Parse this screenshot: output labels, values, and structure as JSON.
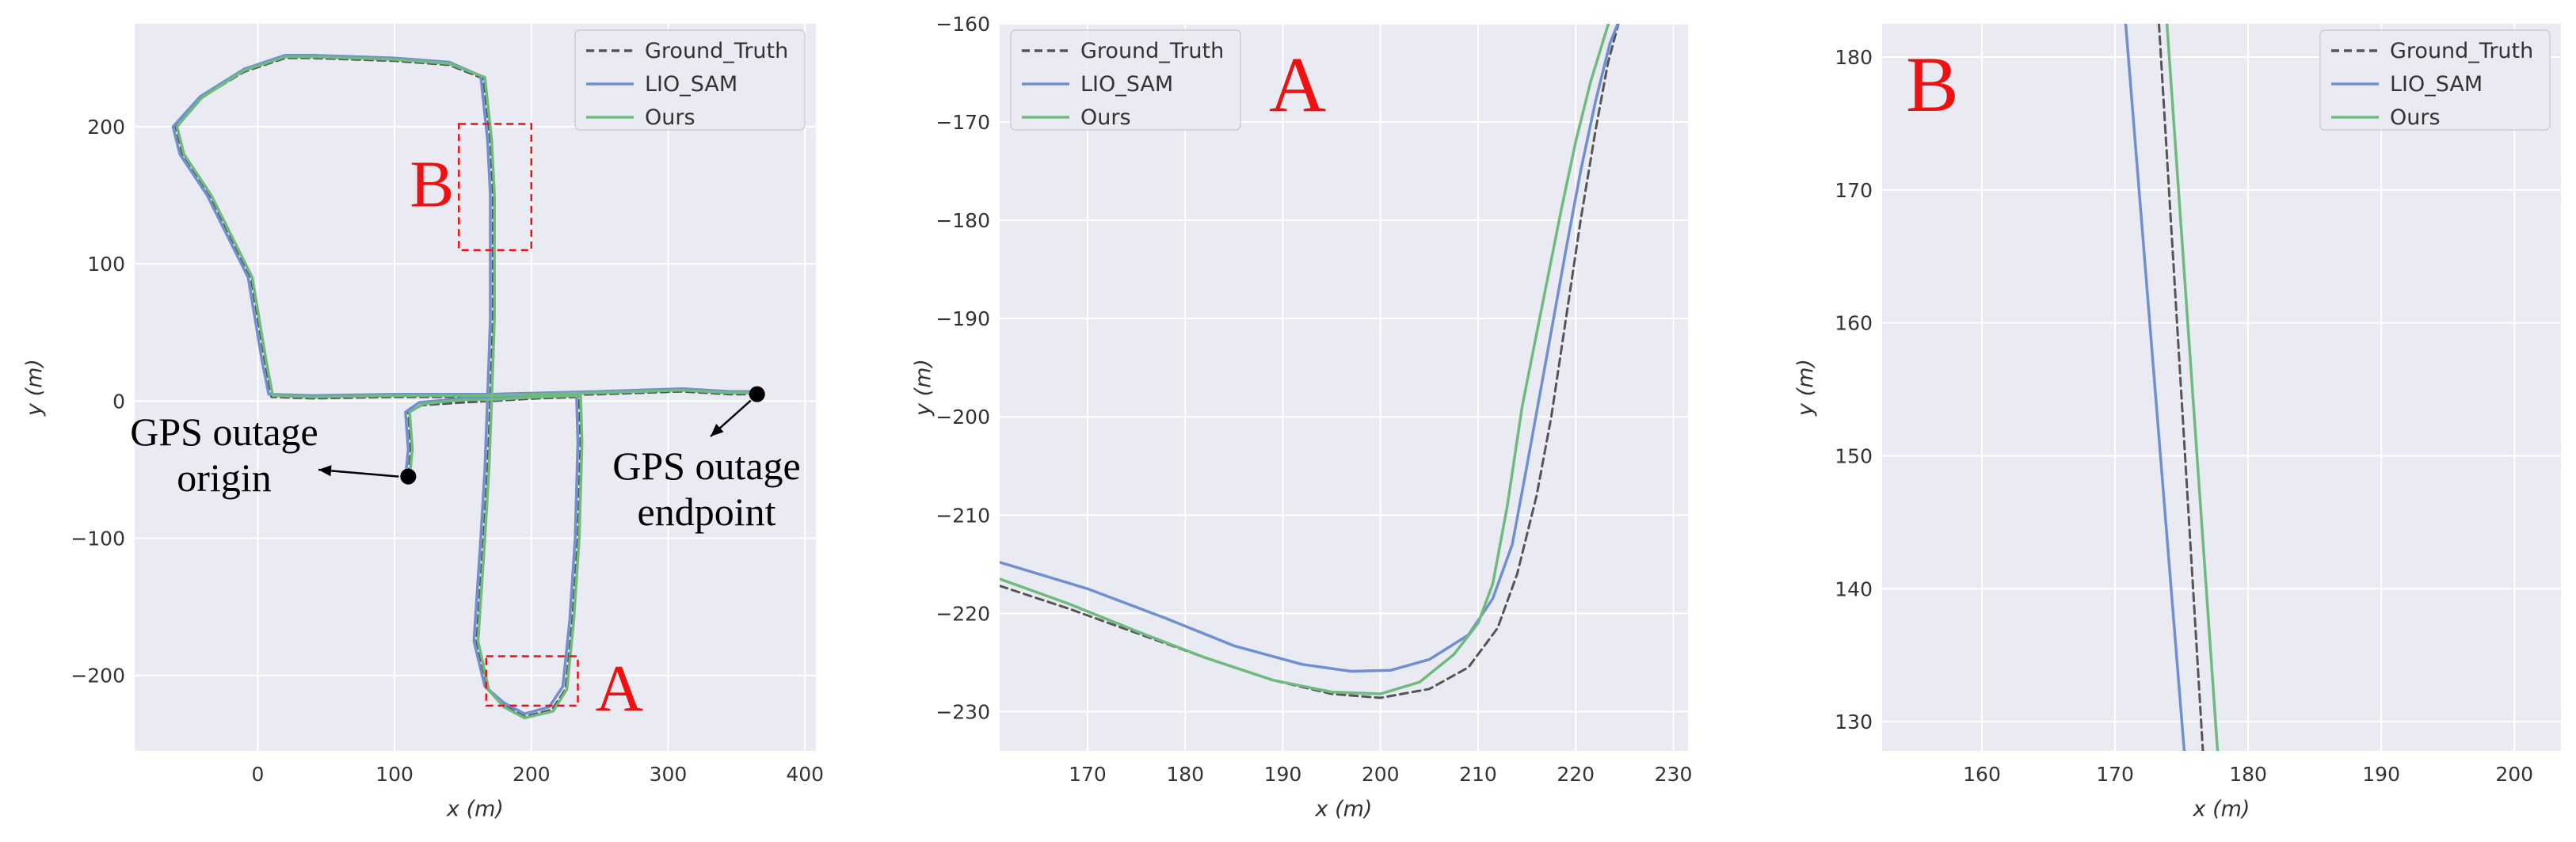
{
  "colors": {
    "background": "#eaeaf2",
    "grid": "#ffffff",
    "ground_truth": "#555555",
    "lio_sam": "#6f8fd0",
    "ours": "#6fba7f",
    "marker_box": "#ee1111",
    "annotation": "#000000"
  },
  "chart_data": [
    {
      "type": "line",
      "xlabel": "x (m)",
      "ylabel": "y (m)",
      "xlim": [
        -90,
        408
      ],
      "ylim": [
        -255,
        275
      ],
      "xticks": [
        0,
        100,
        200,
        300,
        400
      ],
      "yticks": [
        -200,
        -100,
        0,
        100,
        200
      ],
      "grid": true,
      "legend_position": "top-right",
      "series": [
        {
          "name": "Ground_Truth",
          "style": "dashed",
          "color": "#555555",
          "points": [
            [
              110,
              -55
            ],
            [
              112,
              -35
            ],
            [
              110,
              -8
            ],
            [
              120,
              -3
            ],
            [
              150,
              -1
            ],
            [
              170,
              0
            ],
            [
              205,
              2
            ],
            [
              235,
              3
            ],
            [
              236,
              -30
            ],
            [
              234,
              -100
            ],
            [
              230,
              -160
            ],
            [
              225,
              -210
            ],
            [
              215,
              -225
            ],
            [
              195,
              -230
            ],
            [
              180,
              -222
            ],
            [
              168,
              -210
            ],
            [
              160,
              -175
            ],
            [
              165,
              -100
            ],
            [
              168,
              -50
            ],
            [
              170,
              0
            ],
            [
              172,
              60
            ],
            [
              172,
              150
            ],
            [
              170,
              190
            ],
            [
              165,
              235
            ],
            [
              140,
              245
            ],
            [
              100,
              248
            ],
            [
              40,
              250
            ],
            [
              20,
              250
            ],
            [
              -10,
              240
            ],
            [
              -40,
              222
            ],
            [
              -60,
              200
            ],
            [
              -55,
              180
            ],
            [
              -35,
              150
            ],
            [
              -5,
              90
            ],
            [
              5,
              30
            ],
            [
              10,
              3
            ],
            [
              40,
              2
            ],
            [
              100,
              3
            ],
            [
              170,
              3
            ],
            [
              250,
              5
            ],
            [
              310,
              7
            ],
            [
              345,
              5
            ],
            [
              365,
              5
            ]
          ]
        },
        {
          "name": "LIO_SAM",
          "style": "solid",
          "color": "#6f8fd0",
          "points": [
            [
              108,
              -55
            ],
            [
              110,
              -35
            ],
            [
              108,
              -8
            ],
            [
              118,
              -1
            ],
            [
              150,
              2
            ],
            [
              170,
              3
            ],
            [
              205,
              5
            ],
            [
              233,
              5
            ],
            [
              234,
              -30
            ],
            [
              232,
              -100
            ],
            [
              228,
              -160
            ],
            [
              223,
              -208
            ],
            [
              213,
              -223
            ],
            [
              195,
              -228
            ],
            [
              180,
              -220
            ],
            [
              166,
              -208
            ],
            [
              158,
              -175
            ],
            [
              163,
              -100
            ],
            [
              166,
              -50
            ],
            [
              168,
              3
            ],
            [
              170,
              60
            ],
            [
              170,
              150
            ],
            [
              168,
              190
            ],
            [
              163,
              237
            ],
            [
              140,
              247
            ],
            [
              100,
              250
            ],
            [
              40,
              252
            ],
            [
              20,
              252
            ],
            [
              -10,
              242
            ],
            [
              -42,
              222
            ],
            [
              -62,
              200
            ],
            [
              -57,
              180
            ],
            [
              -37,
              150
            ],
            [
              -7,
              90
            ],
            [
              3,
              30
            ],
            [
              8,
              5
            ],
            [
              40,
              4
            ],
            [
              100,
              5
            ],
            [
              170,
              5
            ],
            [
              250,
              7
            ],
            [
              310,
              9
            ],
            [
              345,
              7
            ],
            [
              365,
              7
            ]
          ]
        },
        {
          "name": "Ours",
          "style": "solid",
          "color": "#6fba7f",
          "points": [
            [
              111,
              -55
            ],
            [
              113,
              -35
            ],
            [
              111,
              -8
            ],
            [
              121,
              -2
            ],
            [
              150,
              1
            ],
            [
              170,
              1
            ],
            [
              205,
              3
            ],
            [
              236,
              4
            ],
            [
              237,
              -30
            ],
            [
              235,
              -100
            ],
            [
              231,
              -160
            ],
            [
              226,
              -210
            ],
            [
              216,
              -226
            ],
            [
              195,
              -231
            ],
            [
              180,
              -223
            ],
            [
              169,
              -211
            ],
            [
              161,
              -175
            ],
            [
              166,
              -100
            ],
            [
              169,
              -50
            ],
            [
              171,
              1
            ],
            [
              173,
              60
            ],
            [
              173,
              150
            ],
            [
              171,
              190
            ],
            [
              166,
              236
            ],
            [
              140,
              246
            ],
            [
              100,
              249
            ],
            [
              40,
              251
            ],
            [
              20,
              251
            ],
            [
              -10,
              241
            ],
            [
              -41,
              221
            ],
            [
              -59,
              200
            ],
            [
              -54,
              180
            ],
            [
              -34,
              150
            ],
            [
              -4,
              90
            ],
            [
              6,
              30
            ],
            [
              11,
              4
            ],
            [
              40,
              3
            ],
            [
              100,
              4
            ],
            [
              170,
              4
            ],
            [
              250,
              6
            ],
            [
              310,
              8
            ],
            [
              345,
              6
            ],
            [
              365,
              6
            ]
          ]
        }
      ],
      "markers": [
        {
          "x": 110,
          "y": -55,
          "text_lines": [
            "GPS outage",
            "origin"
          ]
        },
        {
          "x": 365,
          "y": 5,
          "text_lines": [
            "GPS outage",
            "endpoint"
          ]
        }
      ],
      "boxes": [
        {
          "label": "B",
          "x0": 147,
          "x1": 200,
          "y0": 110,
          "y1": 202
        },
        {
          "label": "A",
          "x0": 167,
          "x1": 234,
          "y0": -222,
          "y1": -186
        }
      ]
    },
    {
      "type": "line",
      "xlabel": "x (m)",
      "ylabel": "y (m)",
      "xlim": [
        161,
        231.5
      ],
      "ylim": [
        -234,
        -160
      ],
      "xticks": [
        170,
        180,
        190,
        200,
        210,
        220,
        230
      ],
      "yticks": [
        -230,
        -220,
        -210,
        -200,
        -190,
        -180,
        -170,
        -160
      ],
      "grid": true,
      "legend_position": "top-left",
      "inset_label": "A",
      "series": [
        {
          "name": "Ground_Truth",
          "style": "dashed",
          "color": "#555555",
          "points": [
            [
              161,
              -217.2
            ],
            [
              168,
              -219.5
            ],
            [
              175,
              -222
            ],
            [
              182,
              -224.5
            ],
            [
              189,
              -226.8
            ],
            [
              195,
              -228.2
            ],
            [
              200,
              -228.6
            ],
            [
              205,
              -227.7
            ],
            [
              209,
              -225.5
            ],
            [
              212,
              -221.5
            ],
            [
              214,
              -216
            ],
            [
              216,
              -208
            ],
            [
              217.5,
              -200
            ],
            [
              219,
              -190
            ],
            [
              220.5,
              -180
            ],
            [
              222,
              -171
            ],
            [
              223.3,
              -164
            ],
            [
              224.5,
              -159.5
            ]
          ]
        },
        {
          "name": "LIO_SAM",
          "style": "solid",
          "color": "#6f8fd0",
          "points": [
            [
              161,
              -214.8
            ],
            [
              170,
              -217.5
            ],
            [
              178,
              -220.5
            ],
            [
              185,
              -223.3
            ],
            [
              192,
              -225.2
            ],
            [
              197,
              -225.9
            ],
            [
              201,
              -225.8
            ],
            [
              205,
              -224.7
            ],
            [
              209,
              -222.2
            ],
            [
              211.5,
              -218.5
            ],
            [
              213.5,
              -213
            ],
            [
              215,
              -205
            ],
            [
              217,
              -194
            ],
            [
              219,
              -183
            ],
            [
              220.5,
              -175
            ],
            [
              222,
              -168
            ],
            [
              223.5,
              -162
            ],
            [
              224.5,
              -159.5
            ]
          ]
        },
        {
          "name": "Ours",
          "style": "solid",
          "color": "#6fba7f",
          "points": [
            [
              161,
              -216.5
            ],
            [
              168,
              -219
            ],
            [
              175,
              -221.8
            ],
            [
              182,
              -224.5
            ],
            [
              189,
              -226.8
            ],
            [
              195,
              -228
            ],
            [
              200,
              -228.2
            ],
            [
              204,
              -227
            ],
            [
              207.5,
              -224.2
            ],
            [
              210,
              -221
            ],
            [
              211.5,
              -217
            ],
            [
              213,
              -209
            ],
            [
              214.5,
              -199
            ],
            [
              216.5,
              -189
            ],
            [
              218.5,
              -179
            ],
            [
              220,
              -172
            ],
            [
              221.5,
              -166
            ],
            [
              223.5,
              -159.5
            ]
          ]
        }
      ]
    },
    {
      "type": "line",
      "xlabel": "x (m)",
      "ylabel": "y (m)",
      "xlim": [
        152.5,
        203.5
      ],
      "ylim": [
        127.8,
        182.5
      ],
      "xticks": [
        160,
        170,
        180,
        190,
        200
      ],
      "yticks": [
        130,
        140,
        150,
        160,
        170,
        180
      ],
      "grid": true,
      "legend_position": "top-right",
      "inset_label": "B",
      "series": [
        {
          "name": "Ground_Truth",
          "style": "dashed",
          "color": "#555555",
          "points": [
            [
              173.3,
              182.5
            ],
            [
              176.6,
              127.8
            ]
          ]
        },
        {
          "name": "LIO_SAM",
          "style": "solid",
          "color": "#6f8fd0",
          "points": [
            [
              170.8,
              182.5
            ],
            [
              175.2,
              127.8
            ]
          ]
        },
        {
          "name": "Ours",
          "style": "solid",
          "color": "#6fba7f",
          "points": [
            [
              173.9,
              182.5
            ],
            [
              177.7,
              127.8
            ]
          ]
        }
      ]
    }
  ]
}
